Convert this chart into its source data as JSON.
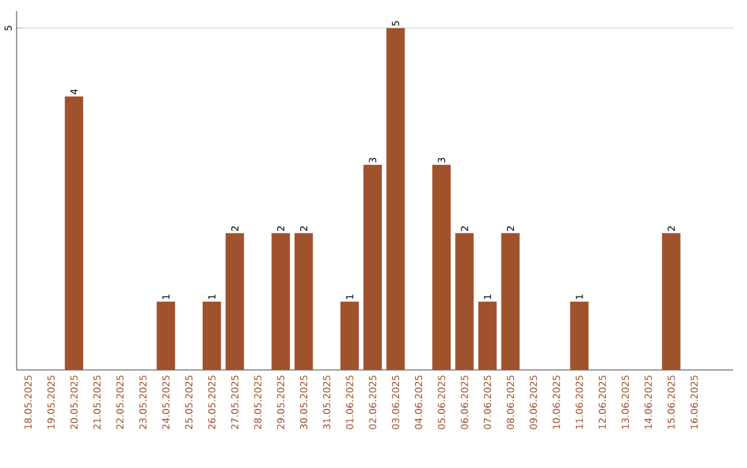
{
  "chart_data": {
    "type": "bar",
    "categories": [
      "18.05.2025",
      "19.05.2025",
      "20.05.2025",
      "21.05.2025",
      "22.05.2025",
      "23.05.2025",
      "24.05.2025",
      "25.05.2025",
      "26.05.2025",
      "27.05.2025",
      "28.05.2025",
      "29.05.2025",
      "30.05.2025",
      "31.05.2025",
      "01.06.2025",
      "02.06.2025",
      "03.06.2025",
      "04.06.2025",
      "05.06.2025",
      "06.06.2025",
      "07.06.2025",
      "08.06.2025",
      "09.06.2025",
      "10.06.2025",
      "11.06.2025",
      "12.06.2025",
      "13.06.2025",
      "14.06.2025",
      "15.06.2025",
      "16.06.2025"
    ],
    "values": [
      0,
      0,
      4,
      0,
      0,
      0,
      1,
      0,
      1,
      2,
      0,
      2,
      2,
      0,
      1,
      3,
      5,
      0,
      3,
      2,
      1,
      2,
      0,
      0,
      1,
      0,
      0,
      0,
      2,
      0
    ],
    "value_labels": [
      null,
      null,
      "4",
      null,
      null,
      null,
      "1",
      null,
      "1",
      "2",
      null,
      "2",
      "2",
      null,
      "1",
      "3",
      "5",
      null,
      "3",
      "2",
      "1",
      "2",
      null,
      null,
      "1",
      null,
      null,
      null,
      "2",
      null
    ],
    "color": "#a0522d",
    "ylim": [
      0,
      5.25
    ],
    "yticks": [
      5
    ],
    "grid": "y"
  }
}
